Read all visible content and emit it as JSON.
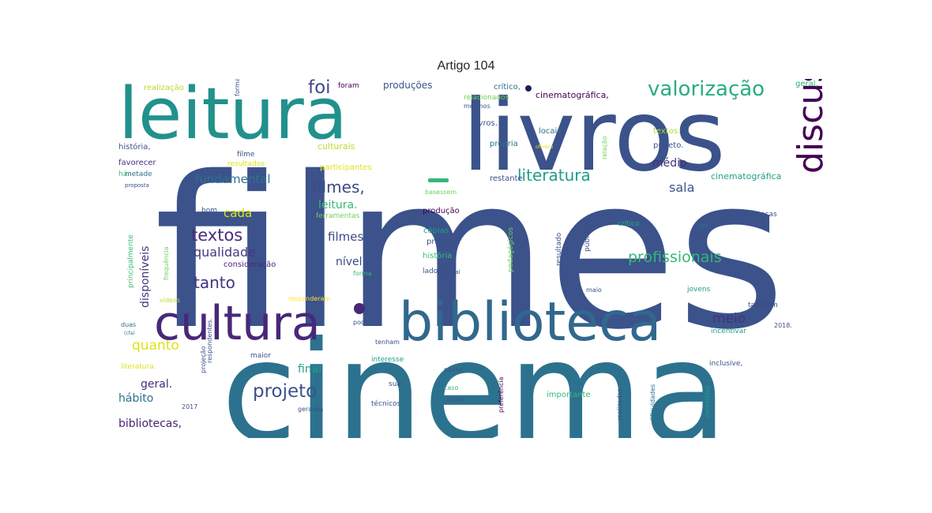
{
  "title": "Artigo 104",
  "words": [
    {
      "text": "filmes",
      "color": "#3b528b"
    },
    {
      "text": "cinema",
      "color": "#2c728e"
    },
    {
      "text": "livros",
      "color": "#3b528b"
    },
    {
      "text": "leitura",
      "color": "#21918c"
    },
    {
      "text": "biblioteca",
      "color": "#31688e"
    },
    {
      "text": "cultura",
      "color": "#482878"
    },
    {
      "text": "discussões",
      "color": "#440154"
    },
    {
      "text": "valorização",
      "color": "#28ae80"
    },
    {
      "text": "literatura",
      "color": "#1f9e89"
    },
    {
      "text": "filmes,",
      "color": "#3e4a89"
    },
    {
      "text": "profissionais",
      "color": "#35b779"
    },
    {
      "text": "projeto",
      "color": "#3b528b"
    },
    {
      "text": "textos",
      "color": "#472d7b"
    },
    {
      "text": "tanto",
      "color": "#46327e"
    },
    {
      "text": "qualidade",
      "color": "#443983"
    },
    {
      "text": "foi",
      "color": "#3e4a89"
    },
    {
      "text": "fundamental",
      "color": "#2c728e"
    },
    {
      "text": "quanto",
      "color": "#dde318"
    },
    {
      "text": "meio",
      "color": "#46327e"
    },
    {
      "text": "sala",
      "color": "#38588c"
    },
    {
      "text": "médio",
      "color": "#472c7a"
    },
    {
      "text": "cada",
      "color": "#dde318"
    },
    {
      "text": "filmes.",
      "color": "#3e4a89"
    },
    {
      "text": "nível",
      "color": "#3e4a89"
    },
    {
      "text": "leitura.",
      "color": "#3aba76"
    },
    {
      "text": "geral.",
      "color": "#472c7a"
    },
    {
      "text": "hábito",
      "color": "#2c728e"
    },
    {
      "text": "final",
      "color": "#1f9e89"
    },
    {
      "text": "bibliotecas,",
      "color": "#482475"
    },
    {
      "text": "disponíveis",
      "color": "#46327e"
    },
    {
      "text": "cinematográfica,",
      "color": "#440154"
    },
    {
      "text": "cinematográfica",
      "color": "#1fa088"
    },
    {
      "text": "produções",
      "color": "#3b528b"
    },
    {
      "text": "realização",
      "color": "#b5de2b"
    },
    {
      "text": "crítico,",
      "color": "#2c728e"
    },
    {
      "text": "relacionados",
      "color": "#6ece58"
    },
    {
      "text": "livros.",
      "color": "#3b528b"
    },
    {
      "text": "locais",
      "color": "#2c728e"
    },
    {
      "text": "própria",
      "color": "#2c728e"
    },
    {
      "text": "textos.",
      "color": "#aadc32"
    },
    {
      "text": "projeto.",
      "color": "#3b528b"
    },
    {
      "text": "geral,",
      "color": "#29af7f"
    },
    {
      "text": "culturais",
      "color": "#b5de2b"
    },
    {
      "text": "participantes",
      "color": "#dde318"
    },
    {
      "text": "resultados",
      "color": "#dde318"
    },
    {
      "text": "filme",
      "color": "#3b528b"
    },
    {
      "text": "história,",
      "color": "#3b528b"
    },
    {
      "text": "favorecer",
      "color": "#46327e"
    },
    {
      "text": "metade",
      "color": "#2c728e"
    },
    {
      "text": "há",
      "color": "#3aba76"
    },
    {
      "text": "proposta",
      "color": "#3b528b"
    },
    {
      "text": "restante",
      "color": "#3b528b"
    },
    {
      "text": "basessem",
      "color": "#6ece58"
    },
    {
      "text": "produção",
      "color": "#440154"
    },
    {
      "text": "ferramentas",
      "color": "#6ece58"
    },
    {
      "text": "cópias",
      "color": "#1f9e89"
    },
    {
      "text": "provocar",
      "color": "#3b528b"
    },
    {
      "text": "história",
      "color": "#3aba76"
    },
    {
      "text": "consideração",
      "color": "#482878"
    },
    {
      "text": "bom",
      "color": "#3b528b"
    },
    {
      "text": "pedagógicos",
      "color": "#6ece58"
    },
    {
      "text": "resultado",
      "color": "#3b528b"
    },
    {
      "text": "público",
      "color": "#3e4a89"
    },
    {
      "text": "crítico",
      "color": "#29af7f"
    },
    {
      "text": "bibliotecas",
      "color": "#3b528b"
    },
    {
      "text": "ler",
      "color": "#2c728e"
    },
    {
      "text": "uso",
      "color": "#3b528b"
    },
    {
      "text": "principalmente",
      "color": "#3aba76"
    },
    {
      "text": "frequência",
      "color": "#6ece58"
    },
    {
      "text": "forma",
      "color": "#3aba76"
    },
    {
      "text": "lado",
      "color": "#3b528b"
    },
    {
      "text": "federal",
      "color": "#3b528b"
    },
    {
      "text": "maio",
      "color": "#3b528b"
    },
    {
      "text": "jovens",
      "color": "#1f9e89"
    },
    {
      "text": "vídeos",
      "color": "#b5de2b"
    },
    {
      "text": "responderam",
      "color": "#fde725"
    },
    {
      "text": "também",
      "color": "#3e4a89"
    },
    {
      "text": "2018.",
      "color": "#3b528b"
    },
    {
      "text": "incentivar",
      "color": "#1f9e89"
    },
    {
      "text": "duas",
      "color": "#2c728e"
    },
    {
      "text": "(cfa)",
      "color": "#2c728e"
    },
    {
      "text": "pode",
      "color": "#3b528b"
    },
    {
      "text": "tenham",
      "color": "#3b528b"
    },
    {
      "text": "literatura.",
      "color": "#dde318"
    },
    {
      "text": "respondentes.",
      "color": "#3b528b"
    },
    {
      "text": "projeção",
      "color": "#3e4a89"
    },
    {
      "text": "maior",
      "color": "#3b528b"
    },
    {
      "text": "interesse",
      "color": "#1f9e89"
    },
    {
      "text": "sua",
      "color": "#3b528b"
    },
    {
      "text": "nesse",
      "color": "#3b528b"
    },
    {
      "text": "caso",
      "color": "#3aba76"
    },
    {
      "text": "todos",
      "color": "#3b528b"
    },
    {
      "text": "técnicos",
      "color": "#3b528b"
    },
    {
      "text": "geradas",
      "color": "#3b528b"
    },
    {
      "text": "2017",
      "color": "#3b528b"
    },
    {
      "text": "preferência",
      "color": "#440154"
    },
    {
      "text": "importante",
      "color": "#35b779"
    },
    {
      "text": "realizadas",
      "color": "#3b528b"
    },
    {
      "text": "dificuldades",
      "color": "#2c728e"
    },
    {
      "text": "conteúdos",
      "color": "#1f9e89"
    },
    {
      "text": "inclusive,",
      "color": "#3b528b"
    },
    {
      "text": "formas",
      "color": "#3b528b"
    },
    {
      "text": "foram",
      "color": "#440154"
    },
    {
      "text": "mesmos",
      "color": "#3b528b"
    },
    {
      "text": "relação",
      "color": "#6ece58"
    },
    {
      "text": "oferece",
      "color": "#dde318"
    }
  ]
}
